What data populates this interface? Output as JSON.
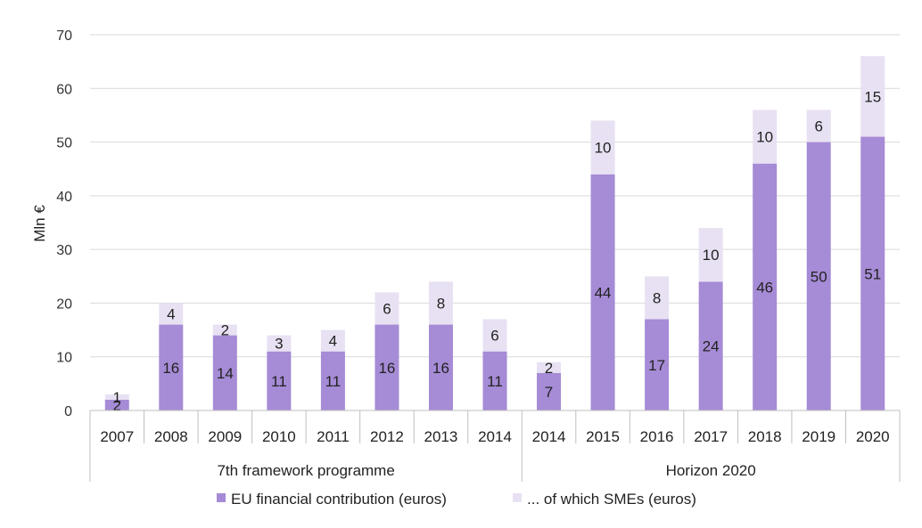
{
  "chart_data": {
    "type": "bar",
    "stacked": true,
    "ylabel": "Mln €",
    "ylim": [
      0,
      70
    ],
    "yticks": [
      0,
      10,
      20,
      30,
      40,
      50,
      60,
      70
    ],
    "grid": true,
    "legend_position": "bottom",
    "categories": [
      "2007",
      "2008",
      "2009",
      "2010",
      "2011",
      "2012",
      "2013",
      "2014",
      "2014",
      "2015",
      "2016",
      "2017",
      "2018",
      "2019",
      "2020"
    ],
    "groups": [
      {
        "label": "7th framework programme",
        "count": 8
      },
      {
        "label": "Horizon 2020",
        "count": 7
      }
    ],
    "series": [
      {
        "name": "EU financial contribution (euros)",
        "color": "#a68bd6",
        "values": [
          2,
          16,
          14,
          11,
          11,
          16,
          16,
          11,
          7,
          44,
          17,
          24,
          46,
          50,
          51
        ],
        "labels": [
          "2",
          "16",
          "14",
          "11",
          "11",
          "16",
          "16",
          "11",
          "7",
          "44",
          "17",
          "24",
          "46",
          "50",
          "51"
        ]
      },
      {
        "name": "... of which SMEs (euros)",
        "color": "#e8e1f3",
        "values": [
          1,
          4,
          2,
          3,
          4,
          6,
          8,
          6,
          2,
          10,
          8,
          10,
          10,
          6,
          15
        ],
        "labels": [
          "1",
          "4",
          "2",
          "3",
          "4",
          "6",
          "8",
          "6",
          "2",
          "10",
          "8",
          "10",
          "10",
          "6",
          "15"
        ]
      }
    ]
  }
}
